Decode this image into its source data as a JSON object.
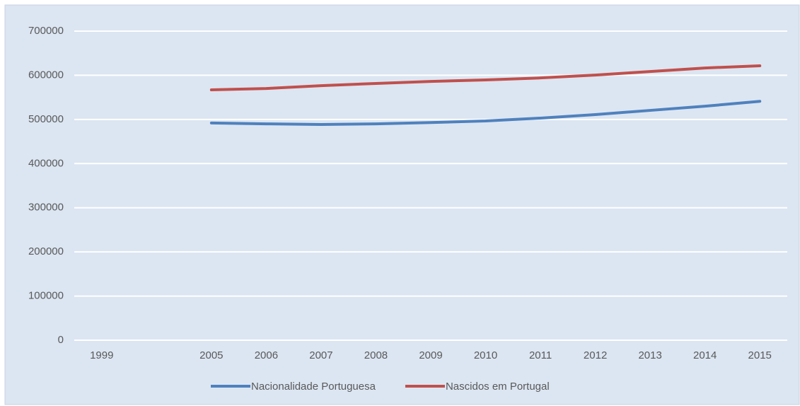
{
  "chart_data": {
    "type": "line",
    "categories": [
      "1999",
      null,
      "2005",
      "2006",
      "2007",
      "2008",
      "2009",
      "2010",
      "2011",
      "2012",
      "2013",
      "2014",
      "2015"
    ],
    "series": [
      {
        "name": "Nacionalidade Portuguesa",
        "color": "#4f81bd",
        "values": [
          null,
          null,
          492000,
          490000,
          488500,
          490000,
          493000,
          496500,
          503000,
          511000,
          520500,
          530000,
          541000
        ]
      },
      {
        "name": "Nascidos em Portugal",
        "color": "#c0504d",
        "values": [
          null,
          null,
          567000,
          570000,
          576500,
          581500,
          586000,
          589500,
          594000,
          600500,
          608500,
          616500,
          621500
        ]
      }
    ],
    "ylim": [
      0,
      700000
    ],
    "yticks": [
      0,
      100000,
      200000,
      300000,
      400000,
      500000,
      600000,
      700000
    ],
    "grid": true,
    "legend": "bottom"
  }
}
